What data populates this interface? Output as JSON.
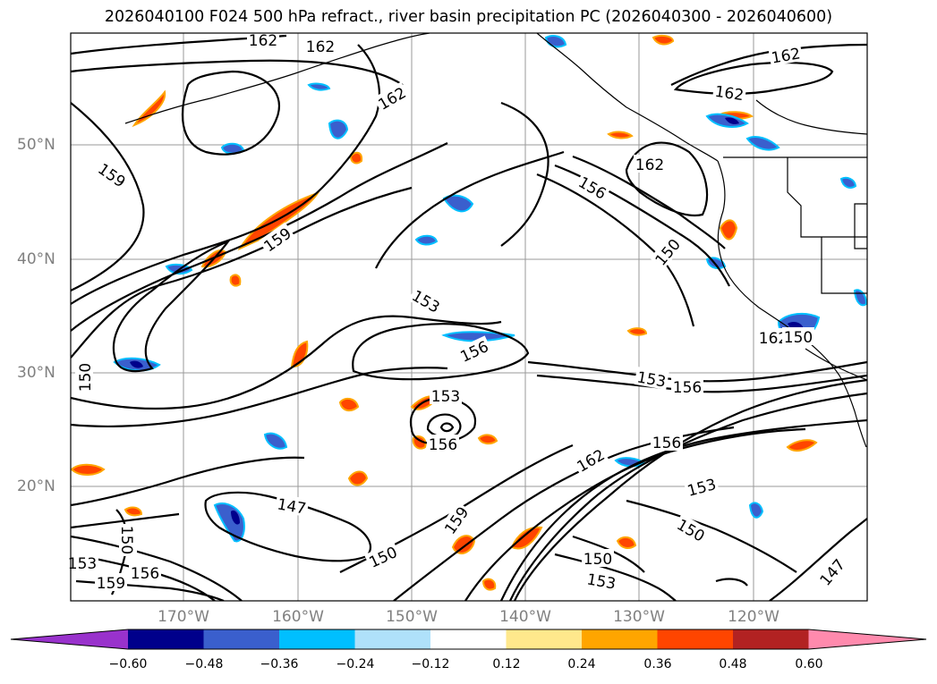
{
  "title": "2026040100 F024 500 hPa refract., river basin precipitation PC (2026040300 - 2026040600)",
  "latitude_labels": [
    "50°N",
    "40°N",
    "30°N",
    "20°N"
  ],
  "longitude_labels": [
    "170°W",
    "160°W",
    "150°W",
    "140°W",
    "130°W",
    "120°W"
  ],
  "contour_labels": [
    "162",
    "162",
    "162",
    "162",
    "162",
    "162",
    "162",
    "162",
    "159",
    "159",
    "159",
    "159",
    "156",
    "156",
    "156",
    "156",
    "156",
    "156",
    "153",
    "153",
    "153",
    "153",
    "153",
    "153",
    "150",
    "150",
    "150",
    "150",
    "150",
    "150",
    "150",
    "147",
    "147"
  ],
  "colorbar": {
    "ticks": [
      "−0.60",
      "−0.48",
      "−0.36",
      "−0.24",
      "−0.12",
      "0.12",
      "0.24",
      "0.36",
      "0.48",
      "0.60"
    ],
    "colors": [
      "#9932cc",
      "#00008b",
      "#3a5fcd",
      "#00bfff",
      "#afe1fa",
      "#ffffff",
      "#ffe88c",
      "#ffa500",
      "#ff4500",
      "#b22222",
      "#ff8aad"
    ]
  }
}
